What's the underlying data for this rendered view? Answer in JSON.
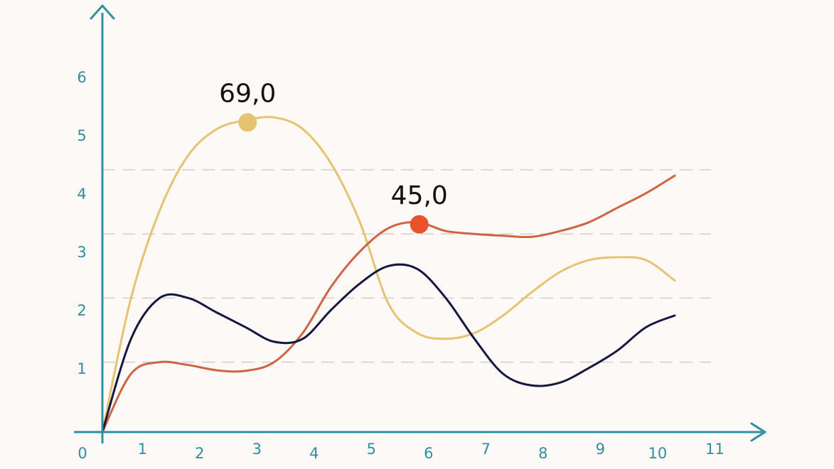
{
  "chart_data": {
    "type": "line",
    "title": "",
    "xlabel": "",
    "ylabel": "",
    "x_ticks": [
      "0",
      "1",
      "2",
      "3",
      "4",
      "5",
      "6",
      "7",
      "8",
      "9",
      "10",
      "11"
    ],
    "y_ticks": [
      "1",
      "2",
      "3",
      "4",
      "5",
      "6"
    ],
    "xlim": [
      0,
      11.6
    ],
    "ylim": [
      0,
      7.2
    ],
    "grid": "dashed horizontal at 1.2, 2.3, 3.4, 4.5",
    "gridlines_y": [
      1.2,
      2.3,
      3.4,
      4.5
    ],
    "axis_color": "#2f8f9d",
    "grid_color": "#cfcfcf",
    "series": [
      {
        "color": "#e5c370",
        "values": [
          [
            0,
            0
          ],
          [
            0.5,
            2.3
          ],
          [
            1,
            3.8
          ],
          [
            1.5,
            4.75
          ],
          [
            2,
            5.2
          ],
          [
            2.5,
            5.35
          ],
          [
            3,
            5.4
          ],
          [
            3.5,
            5.2
          ],
          [
            4,
            4.6
          ],
          [
            4.5,
            3.6
          ],
          [
            5,
            2.2
          ],
          [
            5.5,
            1.7
          ],
          [
            6,
            1.6
          ],
          [
            6.5,
            1.7
          ],
          [
            7,
            2.0
          ],
          [
            7.5,
            2.4
          ],
          [
            8,
            2.75
          ],
          [
            8.5,
            2.95
          ],
          [
            9,
            3.0
          ],
          [
            9.5,
            2.95
          ],
          [
            10,
            2.6
          ]
        ]
      },
      {
        "color": "#cf6443",
        "values": [
          [
            0,
            0
          ],
          [
            0.5,
            1.0
          ],
          [
            1,
            1.2
          ],
          [
            1.5,
            1.15
          ],
          [
            2,
            1.06
          ],
          [
            2.5,
            1.05
          ],
          [
            3,
            1.2
          ],
          [
            3.5,
            1.7
          ],
          [
            4,
            2.5
          ],
          [
            4.5,
            3.1
          ],
          [
            5,
            3.5
          ],
          [
            5.5,
            3.6
          ],
          [
            6,
            3.45
          ],
          [
            6.5,
            3.4
          ],
          [
            7,
            3.37
          ],
          [
            7.5,
            3.35
          ],
          [
            8,
            3.45
          ],
          [
            8.5,
            3.6
          ],
          [
            9,
            3.85
          ],
          [
            9.5,
            4.1
          ],
          [
            10,
            4.4
          ]
        ]
      },
      {
        "color": "#14173f",
        "values": [
          [
            0,
            0
          ],
          [
            0.5,
            1.6
          ],
          [
            1,
            2.3
          ],
          [
            1.5,
            2.3
          ],
          [
            2,
            2.05
          ],
          [
            2.5,
            1.8
          ],
          [
            3,
            1.55
          ],
          [
            3.5,
            1.6
          ],
          [
            4,
            2.1
          ],
          [
            4.5,
            2.55
          ],
          [
            5,
            2.85
          ],
          [
            5.5,
            2.8
          ],
          [
            6,
            2.3
          ],
          [
            6.5,
            1.6
          ],
          [
            7,
            1.0
          ],
          [
            7.5,
            0.8
          ],
          [
            8,
            0.85
          ],
          [
            8.5,
            1.1
          ],
          [
            9,
            1.4
          ],
          [
            9.5,
            1.8
          ],
          [
            10,
            2.0
          ]
        ]
      }
    ],
    "annotations": [
      {
        "text": "69,0",
        "x": 2.5,
        "y": 5.35,
        "color": "#e5c370"
      },
      {
        "text": "45,0",
        "x": 5.5,
        "y": 3.6,
        "color": "#e9532c"
      }
    ]
  }
}
